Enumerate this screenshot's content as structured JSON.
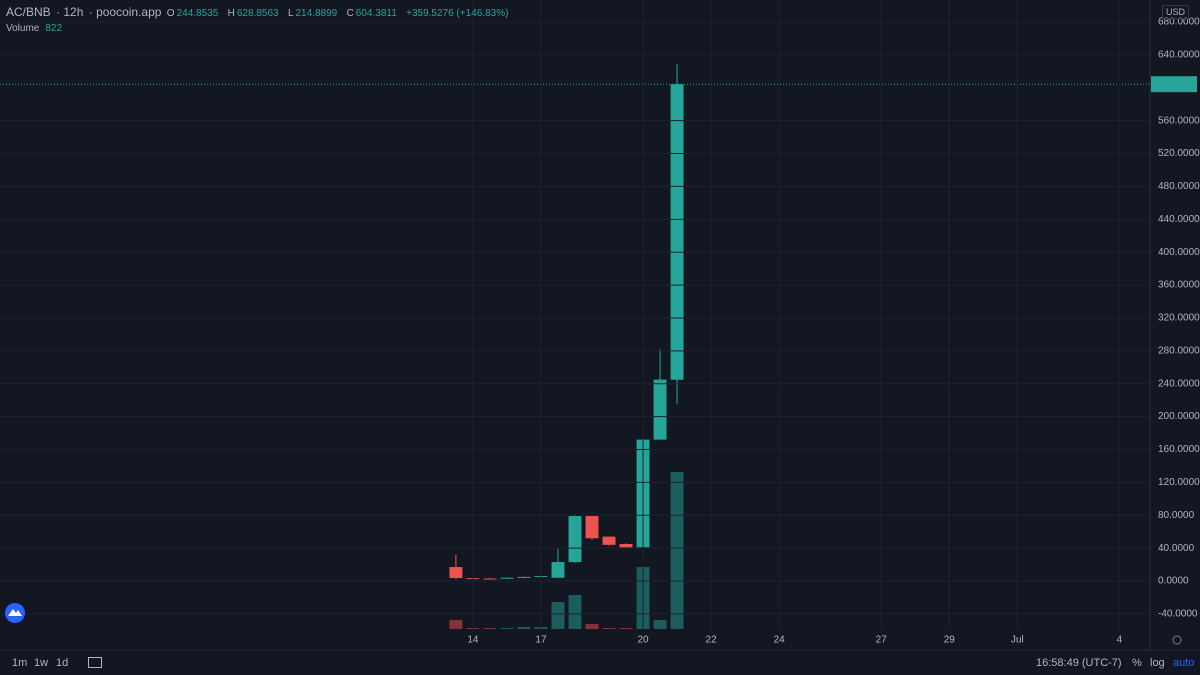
{
  "chart_data": {
    "type": "candlestick",
    "symbol": "AC/BNB",
    "interval": "12h",
    "source": "poocoin.app",
    "ohlc_labels": [
      "O",
      "H",
      "L",
      "C"
    ],
    "change_label": "+359.5276 (+146.83%)",
    "volume_title": "Volume",
    "currency": "USD",
    "categories": [
      null,
      null,
      null,
      null,
      null,
      null,
      null,
      null,
      null,
      null,
      null,
      null,
      null,
      null
    ],
    "open": [
      17,
      3.5,
      3,
      3,
      4,
      5,
      4,
      23,
      79,
      54,
      45,
      41,
      172,
      244.8535
    ],
    "high": [
      32,
      4,
      4,
      4.5,
      5.5,
      6.5,
      39,
      81,
      79,
      54,
      46,
      180,
      282,
      628.8563
    ],
    "low": [
      2,
      2.5,
      2.5,
      2.5,
      3.5,
      4.5,
      4,
      22,
      50,
      43,
      40,
      40,
      172,
      214.8899
    ],
    "close": [
      3.6,
      3,
      2.8,
      4,
      5,
      6,
      23,
      79,
      52,
      44,
      41,
      172,
      245,
      604.3811
    ],
    "volume": [
      47,
      5,
      5,
      5,
      10,
      10,
      141,
      178,
      26,
      5,
      5,
      325,
      47,
      822
    ],
    "up_color": "#26a69a",
    "down_color": "#ef5350",
    "xlim": [
      -26.8,
      40.8
    ],
    "xticks": [
      {
        "value": 1,
        "label": "14"
      },
      {
        "value": 5,
        "label": "17"
      },
      {
        "value": 11,
        "label": "20"
      },
      {
        "value": 15,
        "label": "22"
      },
      {
        "value": 19,
        "label": "24"
      },
      {
        "value": 25,
        "label": "27"
      },
      {
        "value": 29,
        "label": "29"
      },
      {
        "value": 33,
        "label": "Jul"
      },
      {
        "value": 39,
        "label": "4"
      }
    ],
    "ylim": [
      -59.6,
      706.8
    ],
    "yticks": [
      {
        "value": -40,
        "label": "-40.0000"
      },
      {
        "value": 0,
        "label": "0.0000"
      },
      {
        "value": 40,
        "label": "40.0000"
      },
      {
        "value": 80,
        "label": "80.0000"
      },
      {
        "value": 120,
        "label": "120.0000"
      },
      {
        "value": 160,
        "label": "160.0000"
      },
      {
        "value": 200,
        "label": "200.0000"
      },
      {
        "value": 240,
        "label": "240.0000"
      },
      {
        "value": 280,
        "label": "280.0000"
      },
      {
        "value": 320,
        "label": "320.0000"
      },
      {
        "value": 360,
        "label": "360.0000"
      },
      {
        "value": 400,
        "label": "400.0000"
      },
      {
        "value": 440,
        "label": "440.0000"
      },
      {
        "value": 480,
        "label": "480.0000"
      },
      {
        "value": 520,
        "label": "520.0000"
      },
      {
        "value": 560,
        "label": "560.0000"
      },
      {
        "value": 640,
        "label": "640.0000"
      },
      {
        "value": 680,
        "label": "680.0000"
      }
    ],
    "grid": true
  },
  "toolbar": {
    "timeframes": [
      "1m",
      "1w",
      "1d"
    ],
    "clock": "16:58:49 (UTC-7)",
    "scale_buttons": [
      "%",
      "log",
      "auto"
    ]
  }
}
